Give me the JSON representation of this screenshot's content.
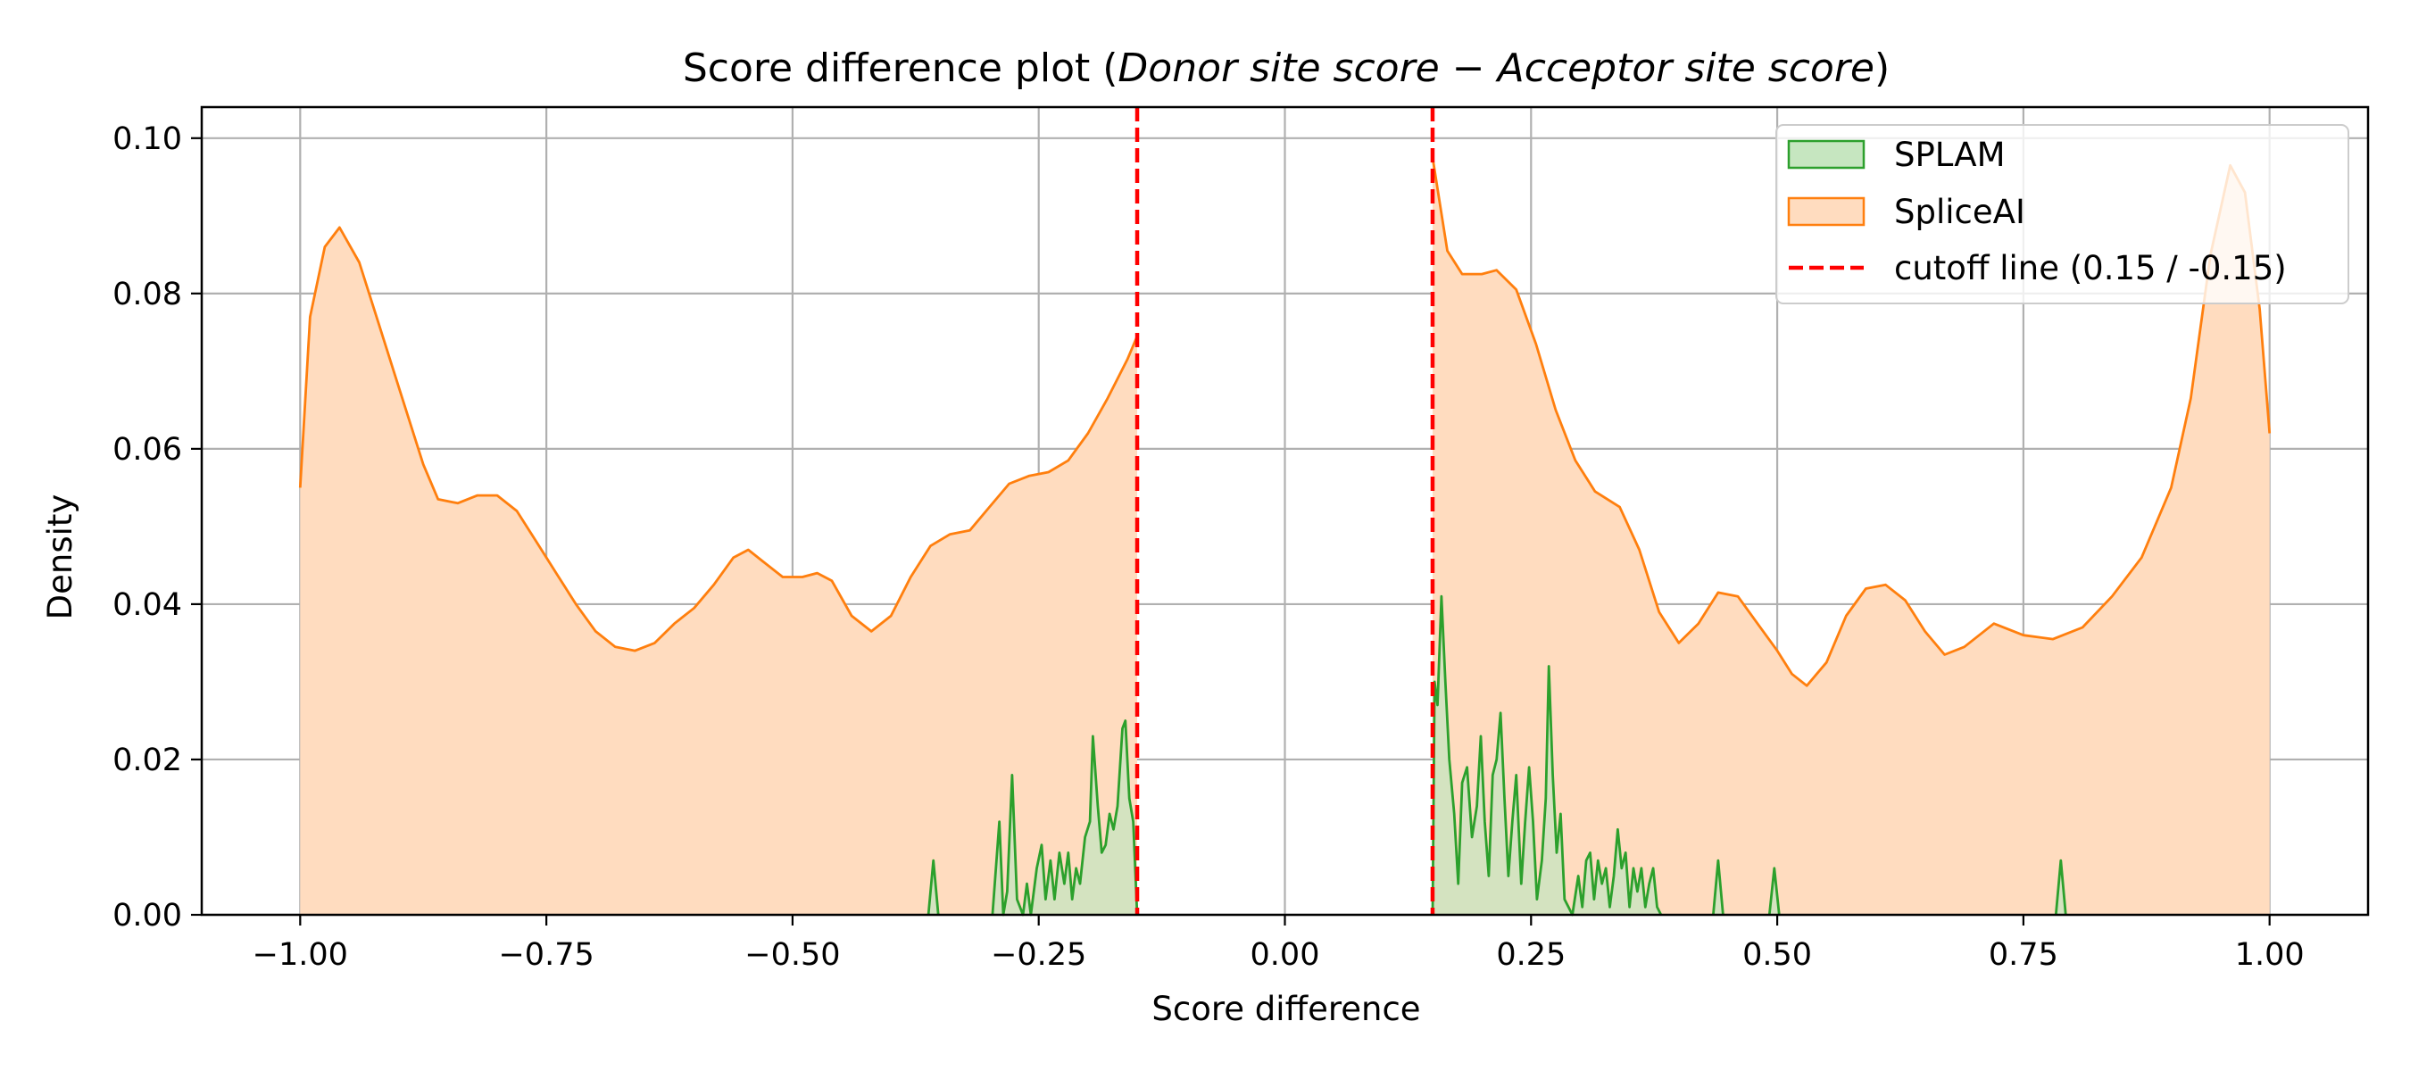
{
  "chart_data": {
    "type": "area",
    "title_plain": "Score difference plot (",
    "title_italic_1": "Donor site score",
    "title_minus": " − ",
    "title_italic_2": "Acceptor site score",
    "title_end": ")",
    "xlabel": "Score difference",
    "ylabel": "Density",
    "xlim": [
      -1.1,
      1.1
    ],
    "ylim": [
      0,
      0.104
    ],
    "grid": true,
    "legend_position": "top-right",
    "x_ticks": [
      -1.0,
      -0.75,
      -0.5,
      -0.25,
      0.0,
      0.25,
      0.5,
      0.75,
      1.0
    ],
    "x_tick_labels": [
      "−1.00",
      "−0.75",
      "−0.50",
      "−0.25",
      "0.00",
      "0.25",
      "0.50",
      "0.75",
      "1.00"
    ],
    "y_ticks": [
      0.0,
      0.02,
      0.04,
      0.06,
      0.08,
      0.1
    ],
    "y_tick_labels": [
      "0.00",
      "0.02",
      "0.04",
      "0.06",
      "0.08",
      "0.10"
    ],
    "series": [
      {
        "name": "SPLAM",
        "color": "#2ca02c",
        "fill": "#c6e6c0",
        "segments": [
          [
            [
              -0.362,
              0
            ],
            [
              -0.357,
              0.007
            ],
            [
              -0.352,
              0
            ]
          ],
          [
            [
              -0.297,
              0
            ],
            [
              -0.29,
              0.012
            ],
            [
              -0.286,
              0
            ],
            [
              -0.282,
              0.003
            ],
            [
              -0.277,
              0.018
            ],
            [
              -0.272,
              0.002
            ],
            [
              -0.266,
              0
            ],
            [
              -0.262,
              0.004
            ],
            [
              -0.258,
              0
            ],
            [
              -0.252,
              0.006
            ],
            [
              -0.247,
              0.009
            ],
            [
              -0.243,
              0.002
            ],
            [
              -0.238,
              0.007
            ],
            [
              -0.234,
              0.002
            ],
            [
              -0.229,
              0.008
            ],
            [
              -0.224,
              0.004
            ],
            [
              -0.22,
              0.008
            ],
            [
              -0.216,
              0.002
            ],
            [
              -0.212,
              0.006
            ],
            [
              -0.208,
              0.004
            ],
            [
              -0.203,
              0.01
            ],
            [
              -0.198,
              0.012
            ],
            [
              -0.195,
              0.023
            ],
            [
              -0.19,
              0.014
            ],
            [
              -0.186,
              0.008
            ],
            [
              -0.182,
              0.009
            ],
            [
              -0.178,
              0.013
            ],
            [
              -0.174,
              0.011
            ],
            [
              -0.17,
              0.014
            ],
            [
              -0.165,
              0.024
            ],
            [
              -0.162,
              0.025
            ],
            [
              -0.158,
              0.015
            ],
            [
              -0.154,
              0.012
            ],
            [
              -0.15,
              0
            ]
          ],
          [
            [
              0.15,
              0
            ],
            [
              0.152,
              0.03
            ],
            [
              0.155,
              0.027
            ],
            [
              0.159,
              0.041
            ],
            [
              0.163,
              0.03
            ],
            [
              0.167,
              0.02
            ],
            [
              0.172,
              0.013
            ],
            [
              0.176,
              0.004
            ],
            [
              0.18,
              0.017
            ],
            [
              0.185,
              0.019
            ],
            [
              0.19,
              0.01
            ],
            [
              0.195,
              0.014
            ],
            [
              0.199,
              0.023
            ],
            [
              0.203,
              0.012
            ],
            [
              0.207,
              0.005
            ],
            [
              0.211,
              0.018
            ],
            [
              0.215,
              0.02
            ],
            [
              0.219,
              0.026
            ],
            [
              0.223,
              0.015
            ],
            [
              0.227,
              0.005
            ],
            [
              0.231,
              0.012
            ],
            [
              0.235,
              0.018
            ],
            [
              0.24,
              0.004
            ],
            [
              0.244,
              0.012
            ],
            [
              0.248,
              0.019
            ],
            [
              0.252,
              0.012
            ],
            [
              0.256,
              0.002
            ],
            [
              0.261,
              0.007
            ],
            [
              0.265,
              0.015
            ],
            [
              0.268,
              0.032
            ],
            [
              0.272,
              0.018
            ],
            [
              0.276,
              0.008
            ],
            [
              0.28,
              0.013
            ],
            [
              0.284,
              0.002
            ],
            [
              0.288,
              0.001
            ],
            [
              0.292,
              0
            ],
            [
              0.298,
              0.005
            ],
            [
              0.302,
              0.001
            ],
            [
              0.306,
              0.007
            ],
            [
              0.31,
              0.008
            ],
            [
              0.314,
              0.002
            ],
            [
              0.318,
              0.007
            ],
            [
              0.322,
              0.004
            ],
            [
              0.326,
              0.006
            ],
            [
              0.33,
              0.001
            ],
            [
              0.334,
              0.005
            ],
            [
              0.338,
              0.011
            ],
            [
              0.342,
              0.006
            ],
            [
              0.346,
              0.008
            ],
            [
              0.35,
              0.001
            ],
            [
              0.354,
              0.006
            ],
            [
              0.358,
              0.003
            ],
            [
              0.362,
              0.006
            ],
            [
              0.366,
              0.001
            ],
            [
              0.37,
              0.004
            ],
            [
              0.374,
              0.006
            ],
            [
              0.378,
              0.001
            ],
            [
              0.382,
              0
            ]
          ],
          [
            [
              0.435,
              0
            ],
            [
              0.44,
              0.007
            ],
            [
              0.445,
              0
            ]
          ],
          [
            [
              0.492,
              0
            ],
            [
              0.497,
              0.006
            ],
            [
              0.502,
              0
            ]
          ],
          [
            [
              0.783,
              0
            ],
            [
              0.788,
              0.007
            ],
            [
              0.793,
              0
            ]
          ]
        ]
      },
      {
        "name": "SpliceAI",
        "color": "#ff7f0e",
        "fill": "#ffdcbf",
        "segments": [
          [
            [
              -1.0,
              0.055
            ],
            [
              -0.99,
              0.077
            ],
            [
              -0.975,
              0.086
            ],
            [
              -0.96,
              0.0885
            ],
            [
              -0.94,
              0.084
            ],
            [
              -0.92,
              0.076
            ],
            [
              -0.9,
              0.068
            ],
            [
              -0.875,
              0.058
            ],
            [
              -0.86,
              0.0535
            ],
            [
              -0.84,
              0.053
            ],
            [
              -0.82,
              0.054
            ],
            [
              -0.8,
              0.054
            ],
            [
              -0.78,
              0.052
            ],
            [
              -0.76,
              0.048
            ],
            [
              -0.74,
              0.044
            ],
            [
              -0.72,
              0.04
            ],
            [
              -0.7,
              0.0365
            ],
            [
              -0.68,
              0.0345
            ],
            [
              -0.66,
              0.034
            ],
            [
              -0.64,
              0.035
            ],
            [
              -0.62,
              0.0375
            ],
            [
              -0.6,
              0.0395
            ],
            [
              -0.58,
              0.0425
            ],
            [
              -0.56,
              0.046
            ],
            [
              -0.545,
              0.047
            ],
            [
              -0.53,
              0.0455
            ],
            [
              -0.51,
              0.0435
            ],
            [
              -0.49,
              0.0435
            ],
            [
              -0.475,
              0.044
            ],
            [
              -0.46,
              0.043
            ],
            [
              -0.44,
              0.0385
            ],
            [
              -0.42,
              0.0365
            ],
            [
              -0.4,
              0.0385
            ],
            [
              -0.38,
              0.0435
            ],
            [
              -0.36,
              0.0475
            ],
            [
              -0.34,
              0.049
            ],
            [
              -0.32,
              0.0495
            ],
            [
              -0.3,
              0.0525
            ],
            [
              -0.28,
              0.0555
            ],
            [
              -0.26,
              0.0565
            ],
            [
              -0.24,
              0.057
            ],
            [
              -0.22,
              0.0585
            ],
            [
              -0.2,
              0.062
            ],
            [
              -0.18,
              0.0665
            ],
            [
              -0.16,
              0.0715
            ],
            [
              -0.15,
              0.0745
            ]
          ],
          [
            [
              0.15,
              0.0975
            ],
            [
              0.165,
              0.0855
            ],
            [
              0.18,
              0.0825
            ],
            [
              0.2,
              0.0825
            ],
            [
              0.215,
              0.083
            ],
            [
              0.235,
              0.0805
            ],
            [
              0.255,
              0.0735
            ],
            [
              0.275,
              0.065
            ],
            [
              0.295,
              0.0585
            ],
            [
              0.315,
              0.0545
            ],
            [
              0.34,
              0.0525
            ],
            [
              0.36,
              0.047
            ],
            [
              0.38,
              0.039
            ],
            [
              0.4,
              0.035
            ],
            [
              0.42,
              0.0375
            ],
            [
              0.44,
              0.0415
            ],
            [
              0.46,
              0.041
            ],
            [
              0.48,
              0.0375
            ],
            [
              0.5,
              0.034
            ],
            [
              0.515,
              0.031
            ],
            [
              0.53,
              0.0295
            ],
            [
              0.55,
              0.0325
            ],
            [
              0.57,
              0.0385
            ],
            [
              0.59,
              0.042
            ],
            [
              0.61,
              0.0425
            ],
            [
              0.63,
              0.0405
            ],
            [
              0.65,
              0.0365
            ],
            [
              0.67,
              0.0335
            ],
            [
              0.69,
              0.0345
            ],
            [
              0.72,
              0.0375
            ],
            [
              0.75,
              0.036
            ],
            [
              0.78,
              0.0355
            ],
            [
              0.81,
              0.037
            ],
            [
              0.84,
              0.041
            ],
            [
              0.87,
              0.046
            ],
            [
              0.9,
              0.055
            ],
            [
              0.92,
              0.0665
            ],
            [
              0.94,
              0.085
            ],
            [
              0.96,
              0.0965
            ],
            [
              0.975,
              0.093
            ],
            [
              0.99,
              0.078
            ],
            [
              1.0,
              0.062
            ]
          ]
        ]
      }
    ],
    "cutoff_lines": {
      "name": "cutoff line (0.15 / -0.15)",
      "color": "#ff0000",
      "x": [
        -0.15,
        0.15
      ]
    },
    "colors": {
      "grid": "#b0b0b0",
      "axis": "#000000",
      "legend_border": "#cccccc"
    }
  }
}
